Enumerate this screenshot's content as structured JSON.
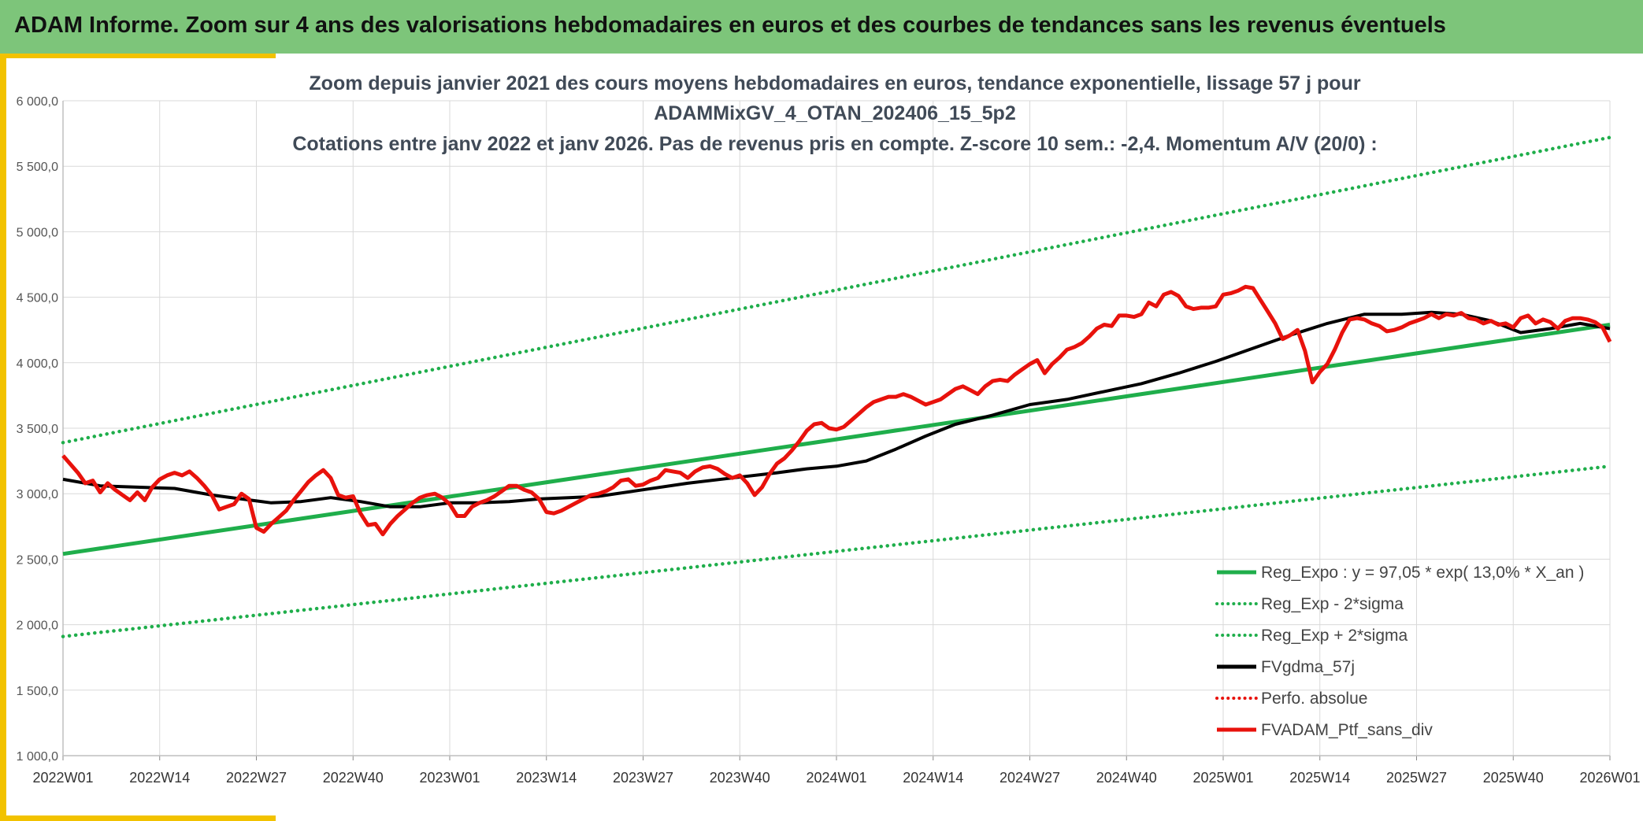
{
  "header": {
    "title": "ADAM Informe. Zoom sur 4 ans des valorisations hebdomadaires en euros et des courbes de tendances sans les revenus éventuels"
  },
  "colors": {
    "header_bg": "#7dc57a",
    "accent": "#f2c200",
    "trend_green": "#1fae4b",
    "ma_black": "#000000",
    "price_red": "#e8120c"
  },
  "chart_data": {
    "type": "line",
    "title_lines": [
      "Zoom depuis janvier 2021 des cours moyens hebdomadaires en euros, tendance exponentielle, lissage 57 j pour",
      "ADAMMixGV_4_OTAN_202406_15_5p2",
      "Cotations entre janv 2022 et janv 2026. Pas de revenus pris en compte. Z-score 10 sem.: -2,4. Momentum A/V (20/0) :"
    ],
    "ylim": [
      1000,
      6000
    ],
    "y_ticks": [
      "1 000,0",
      "1 500,0",
      "2 000,0",
      "2 500,0",
      "3 000,0",
      "3 500,0",
      "4 000,0",
      "4 500,0",
      "5 000,0",
      "5 500,0",
      "6 000,0"
    ],
    "x_ticks": [
      "2022W01",
      "2022W14",
      "2022W27",
      "2022W40",
      "2023W01",
      "2023W14",
      "2023W27",
      "2023W40",
      "2024W01",
      "2024W14",
      "2024W27",
      "2024W40",
      "2025W01",
      "2025W14",
      "2025W27",
      "2025W40",
      "2026W01"
    ],
    "grid": true,
    "legend_position": "bottom-right",
    "series": [
      {
        "name": "Reg_Expo : y = 97,05 * exp( 13,0% *  X_an )",
        "style": "solid",
        "color": "#1fae4b",
        "points": [
          [
            0,
            2540
          ],
          [
            208,
            4290
          ]
        ]
      },
      {
        "name": "Reg_Exp - 2*sigma",
        "style": "dotted",
        "color": "#1fae4b",
        "points": [
          [
            0,
            1910
          ],
          [
            208,
            3210
          ]
        ]
      },
      {
        "name": "Reg_Exp + 2*sigma",
        "style": "dotted",
        "color": "#1fae4b",
        "points": [
          [
            0,
            3390
          ],
          [
            208,
            5720
          ]
        ]
      },
      {
        "name": "FVgdma_57j",
        "style": "solid",
        "color": "#000000",
        "points": [
          [
            0,
            3110
          ],
          [
            5,
            3060
          ],
          [
            10,
            3050
          ],
          [
            15,
            3040
          ],
          [
            20,
            2990
          ],
          [
            24,
            2960
          ],
          [
            28,
            2930
          ],
          [
            32,
            2940
          ],
          [
            36,
            2970
          ],
          [
            40,
            2940
          ],
          [
            44,
            2900
          ],
          [
            48,
            2900
          ],
          [
            52,
            2930
          ],
          [
            56,
            2930
          ],
          [
            60,
            2940
          ],
          [
            64,
            2960
          ],
          [
            68,
            2970
          ],
          [
            72,
            2980
          ],
          [
            78,
            3030
          ],
          [
            84,
            3080
          ],
          [
            90,
            3120
          ],
          [
            96,
            3160
          ],
          [
            100,
            3190
          ],
          [
            104,
            3210
          ],
          [
            108,
            3250
          ],
          [
            112,
            3340
          ],
          [
            116,
            3440
          ],
          [
            120,
            3530
          ],
          [
            125,
            3600
          ],
          [
            130,
            3680
          ],
          [
            135,
            3720
          ],
          [
            140,
            3780
          ],
          [
            145,
            3840
          ],
          [
            150,
            3920
          ],
          [
            155,
            4010
          ],
          [
            160,
            4110
          ],
          [
            165,
            4210
          ],
          [
            170,
            4300
          ],
          [
            175,
            4370
          ],
          [
            180,
            4370
          ],
          [
            184,
            4385
          ],
          [
            188,
            4370
          ],
          [
            192,
            4320
          ],
          [
            196,
            4230
          ],
          [
            200,
            4260
          ],
          [
            204,
            4300
          ],
          [
            208,
            4260
          ]
        ]
      },
      {
        "name": "Perfo. absolue",
        "style": "dotted",
        "color": "#e8120c",
        "points": []
      },
      {
        "name": "FVADAM_Ptf_sans_div",
        "style": "solid",
        "color": "#e8120c",
        "points": [
          [
            0,
            3290
          ],
          [
            2,
            3160
          ],
          [
            3,
            3080
          ],
          [
            4,
            3100
          ],
          [
            5,
            3010
          ],
          [
            6,
            3080
          ],
          [
            7,
            3030
          ],
          [
            8,
            2990
          ],
          [
            9,
            2950
          ],
          [
            10,
            3010
          ],
          [
            11,
            2950
          ],
          [
            12,
            3050
          ],
          [
            13,
            3110
          ],
          [
            14,
            3140
          ],
          [
            15,
            3160
          ],
          [
            16,
            3140
          ],
          [
            17,
            3170
          ],
          [
            18,
            3120
          ],
          [
            19,
            3060
          ],
          [
            20,
            2990
          ],
          [
            21,
            2880
          ],
          [
            22,
            2900
          ],
          [
            23,
            2920
          ],
          [
            24,
            3000
          ],
          [
            25,
            2960
          ],
          [
            26,
            2740
          ],
          [
            27,
            2710
          ],
          [
            28,
            2770
          ],
          [
            29,
            2820
          ],
          [
            30,
            2870
          ],
          [
            31,
            2950
          ],
          [
            32,
            3020
          ],
          [
            33,
            3090
          ],
          [
            34,
            3140
          ],
          [
            35,
            3180
          ],
          [
            36,
            3120
          ],
          [
            37,
            2990
          ],
          [
            38,
            2970
          ],
          [
            39,
            2980
          ],
          [
            40,
            2850
          ],
          [
            41,
            2760
          ],
          [
            42,
            2770
          ],
          [
            43,
            2690
          ],
          [
            44,
            2770
          ],
          [
            45,
            2830
          ],
          [
            46,
            2880
          ],
          [
            47,
            2930
          ],
          [
            48,
            2970
          ],
          [
            49,
            2990
          ],
          [
            50,
            3000
          ],
          [
            51,
            2970
          ],
          [
            52,
            2920
          ],
          [
            53,
            2830
          ],
          [
            54,
            2830
          ],
          [
            55,
            2900
          ],
          [
            56,
            2930
          ],
          [
            57,
            2950
          ],
          [
            58,
            2980
          ],
          [
            59,
            3020
          ],
          [
            60,
            3060
          ],
          [
            61,
            3060
          ],
          [
            62,
            3030
          ],
          [
            63,
            3010
          ],
          [
            64,
            2960
          ],
          [
            65,
            2860
          ],
          [
            66,
            2850
          ],
          [
            67,
            2870
          ],
          [
            68,
            2900
          ],
          [
            69,
            2930
          ],
          [
            70,
            2960
          ],
          [
            71,
            2990
          ],
          [
            72,
            3000
          ],
          [
            73,
            3020
          ],
          [
            74,
            3050
          ],
          [
            75,
            3100
          ],
          [
            76,
            3110
          ],
          [
            77,
            3060
          ],
          [
            78,
            3070
          ],
          [
            79,
            3100
          ],
          [
            80,
            3120
          ],
          [
            81,
            3180
          ],
          [
            82,
            3170
          ],
          [
            83,
            3160
          ],
          [
            84,
            3120
          ],
          [
            85,
            3170
          ],
          [
            86,
            3200
          ],
          [
            87,
            3210
          ],
          [
            88,
            3190
          ],
          [
            89,
            3150
          ],
          [
            90,
            3120
          ],
          [
            91,
            3140
          ],
          [
            92,
            3080
          ],
          [
            93,
            2990
          ],
          [
            94,
            3050
          ],
          [
            95,
            3150
          ],
          [
            96,
            3230
          ],
          [
            97,
            3270
          ],
          [
            98,
            3330
          ],
          [
            99,
            3400
          ],
          [
            100,
            3480
          ],
          [
            101,
            3530
          ],
          [
            102,
            3540
          ],
          [
            103,
            3500
          ],
          [
            104,
            3490
          ],
          [
            105,
            3510
          ],
          [
            106,
            3560
          ],
          [
            107,
            3610
          ],
          [
            108,
            3660
          ],
          [
            109,
            3700
          ],
          [
            110,
            3720
          ],
          [
            111,
            3740
          ],
          [
            112,
            3740
          ],
          [
            113,
            3760
          ],
          [
            114,
            3740
          ],
          [
            115,
            3710
          ],
          [
            116,
            3680
          ],
          [
            117,
            3700
          ],
          [
            118,
            3720
          ],
          [
            119,
            3760
          ],
          [
            120,
            3800
          ],
          [
            121,
            3820
          ],
          [
            122,
            3790
          ],
          [
            123,
            3760
          ],
          [
            124,
            3820
          ],
          [
            125,
            3860
          ],
          [
            126,
            3870
          ],
          [
            127,
            3860
          ],
          [
            128,
            3910
          ],
          [
            129,
            3950
          ],
          [
            130,
            3990
          ],
          [
            131,
            4020
          ],
          [
            132,
            3920
          ],
          [
            133,
            3990
          ],
          [
            134,
            4040
          ],
          [
            135,
            4100
          ],
          [
            136,
            4120
          ],
          [
            137,
            4150
          ],
          [
            138,
            4200
          ],
          [
            139,
            4260
          ],
          [
            140,
            4290
          ],
          [
            141,
            4280
          ],
          [
            142,
            4360
          ],
          [
            143,
            4360
          ],
          [
            144,
            4350
          ],
          [
            145,
            4370
          ],
          [
            146,
            4460
          ],
          [
            147,
            4430
          ],
          [
            148,
            4520
          ],
          [
            149,
            4540
          ],
          [
            150,
            4510
          ],
          [
            151,
            4430
          ],
          [
            152,
            4410
          ],
          [
            153,
            4420
          ],
          [
            154,
            4420
          ],
          [
            155,
            4430
          ],
          [
            156,
            4520
          ],
          [
            157,
            4530
          ],
          [
            158,
            4550
          ],
          [
            159,
            4580
          ],
          [
            160,
            4570
          ],
          [
            161,
            4480
          ],
          [
            162,
            4390
          ],
          [
            163,
            4300
          ],
          [
            164,
            4180
          ],
          [
            165,
            4210
          ],
          [
            166,
            4250
          ],
          [
            167,
            4090
          ],
          [
            168,
            3850
          ],
          [
            169,
            3930
          ],
          [
            170,
            3990
          ],
          [
            171,
            4100
          ],
          [
            172,
            4230
          ],
          [
            173,
            4330
          ],
          [
            174,
            4340
          ],
          [
            175,
            4330
          ],
          [
            176,
            4300
          ],
          [
            177,
            4280
          ],
          [
            178,
            4240
          ],
          [
            179,
            4250
          ],
          [
            180,
            4270
          ],
          [
            181,
            4300
          ],
          [
            182,
            4320
          ],
          [
            183,
            4340
          ],
          [
            184,
            4370
          ],
          [
            185,
            4340
          ],
          [
            186,
            4370
          ],
          [
            187,
            4360
          ],
          [
            188,
            4380
          ],
          [
            189,
            4340
          ],
          [
            190,
            4330
          ],
          [
            191,
            4300
          ],
          [
            192,
            4320
          ],
          [
            193,
            4290
          ],
          [
            194,
            4300
          ],
          [
            195,
            4270
          ],
          [
            196,
            4340
          ],
          [
            197,
            4360
          ],
          [
            198,
            4300
          ],
          [
            199,
            4330
          ],
          [
            200,
            4310
          ],
          [
            201,
            4260
          ],
          [
            202,
            4320
          ],
          [
            203,
            4340
          ],
          [
            204,
            4340
          ],
          [
            205,
            4330
          ],
          [
            206,
            4310
          ],
          [
            207,
            4270
          ],
          [
            208,
            4160
          ]
        ]
      }
    ]
  }
}
